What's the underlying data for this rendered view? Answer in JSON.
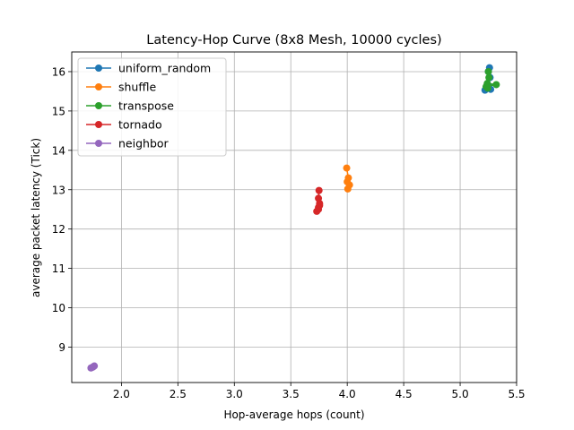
{
  "chart_data": {
    "type": "line",
    "title": "Latency-Hop Curve (8x8 Mesh, 10000 cycles)",
    "xlabel": "Hop-average hops (count)",
    "ylabel": "average packet latency (Tick)",
    "xlim": [
      1.56,
      5.5
    ],
    "ylim": [
      8.1,
      16.5
    ],
    "xticks": [
      2.0,
      2.5,
      3.0,
      3.5,
      4.0,
      4.5,
      5.0,
      5.5
    ],
    "xtick_labels": [
      "2.0",
      "2.5",
      "3.0",
      "3.5",
      "4.0",
      "4.5",
      "5.0",
      "5.5"
    ],
    "yticks": [
      9,
      10,
      11,
      12,
      13,
      14,
      15,
      16
    ],
    "ytick_labels": [
      "9",
      "10",
      "11",
      "12",
      "13",
      "14",
      "15",
      "16"
    ],
    "grid": true,
    "legend": "top-left",
    "series": [
      {
        "name": "uniform_random",
        "color": "#1f77b4",
        "x": [
          5.22,
          5.24,
          5.27,
          5.25,
          5.26,
          5.265,
          5.25
        ],
        "y": [
          15.53,
          15.6,
          15.55,
          16.0,
          16.1,
          15.85,
          15.65
        ]
      },
      {
        "name": "shuffle",
        "color": "#ff7f0e",
        "x": [
          3.995,
          4.01,
          4.02,
          4.005,
          4.0
        ],
        "y": [
          13.55,
          13.3,
          13.12,
          13.02,
          13.2
        ]
      },
      {
        "name": "transpose",
        "color": "#2ca02c",
        "x": [
          5.23,
          5.32,
          5.24,
          5.255,
          5.25,
          5.245
        ],
        "y": [
          15.62,
          15.67,
          15.7,
          15.85,
          16.0,
          15.58
        ]
      },
      {
        "name": "tornado",
        "color": "#d62728",
        "x": [
          3.73,
          3.745,
          3.755,
          3.755,
          3.745,
          3.75,
          3.745
        ],
        "y": [
          12.45,
          12.5,
          12.6,
          12.65,
          12.78,
          12.98,
          12.55
        ]
      },
      {
        "name": "neighbor",
        "color": "#9467bd",
        "x": [
          1.73,
          1.75,
          1.76,
          1.745
        ],
        "y": [
          8.47,
          8.5,
          8.52,
          8.49
        ]
      }
    ]
  }
}
